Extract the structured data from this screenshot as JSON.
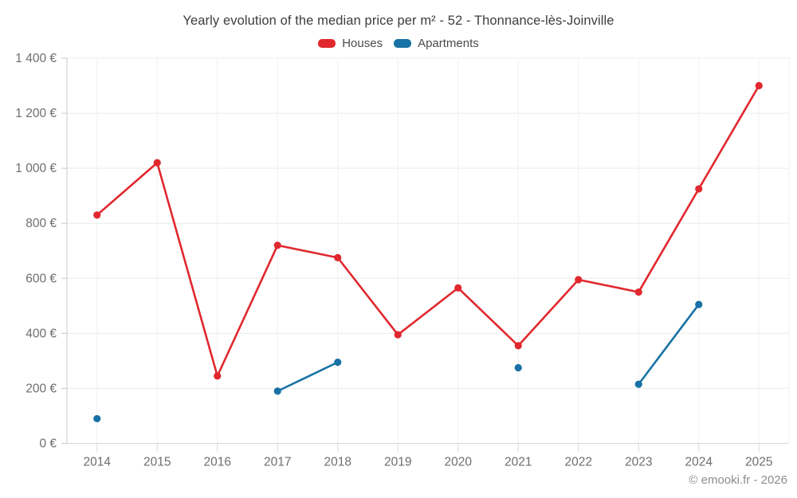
{
  "title": "Yearly evolution of the median price per m² - 52 - Thonnance-lès-Joinville",
  "legend": [
    {
      "label": "Houses",
      "color": "#e0282e"
    },
    {
      "label": "Apartments",
      "color": "#1872a5"
    }
  ],
  "footer": "© emooki.fr - 2026",
  "colors": {
    "houses": "#e0282e",
    "apartments": "#1872a5",
    "gridline": "#ebebeb",
    "axis_line": "#c8c8c8",
    "tick_mark": "#d8d8d8",
    "tick_label": "#6e6e6e"
  },
  "chart_data": {
    "type": "line",
    "title": "Yearly evolution of the median price per m² - 52 - Thonnance-lès-Joinville",
    "categories": [
      "2014",
      "2015",
      "2016",
      "2017",
      "2018",
      "2019",
      "2020",
      "2021",
      "2022",
      "2023",
      "2024",
      "2025"
    ],
    "series": [
      {
        "name": "Houses",
        "color": "#e0282e",
        "values": [
          830,
          1020,
          245,
          720,
          675,
          395,
          565,
          355,
          595,
          550,
          925,
          1300
        ]
      },
      {
        "name": "Apartments",
        "color": "#1872a5",
        "values": [
          90,
          null,
          null,
          190,
          295,
          null,
          null,
          275,
          null,
          215,
          505,
          null
        ]
      }
    ],
    "xlabel": "",
    "ylabel": "",
    "ylim": [
      0,
      1400
    ],
    "ytick_step": 200,
    "ytick_labels": [
      "0 €",
      "200 €",
      "400 €",
      "600 €",
      "800 €",
      "1 000 €",
      "1 200 €",
      "1 400 €"
    ],
    "grid": true,
    "legend_position": "top",
    "currency": "€"
  }
}
